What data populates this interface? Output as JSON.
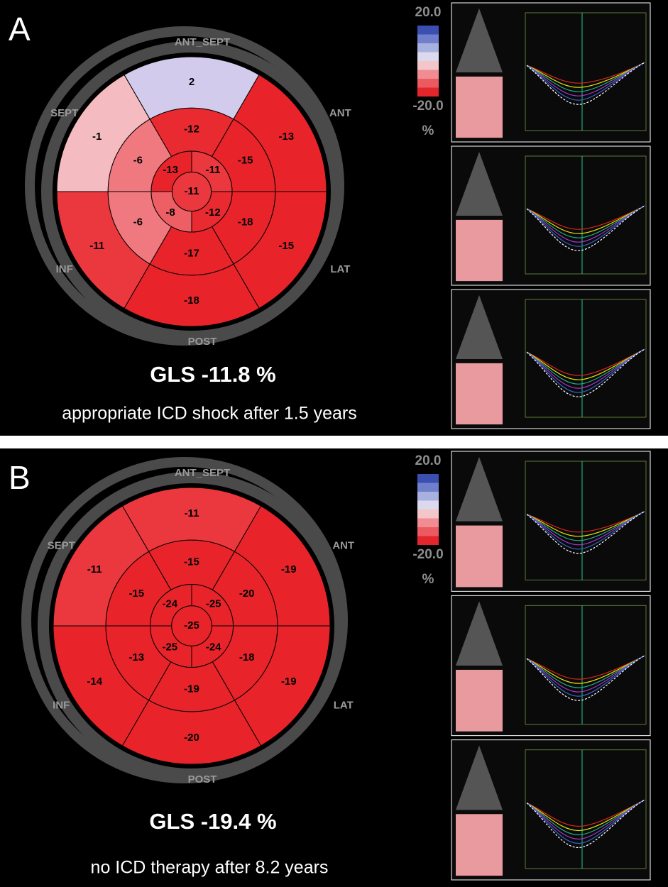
{
  "panels": [
    {
      "label": "A",
      "scale": {
        "max": "20.0",
        "min": "-20.0",
        "unit": "%"
      },
      "walls": [
        "ANT_SEPT",
        "ANT",
        "LAT",
        "POST",
        "INF",
        "SEPT"
      ],
      "basal": [
        2,
        -13,
        -15,
        -18,
        -11,
        -1
      ],
      "mid": [
        -12,
        -15,
        -18,
        -17,
        -6,
        -6
      ],
      "apical": [
        -11,
        -12,
        -8,
        -13
      ],
      "apex": -11,
      "gls": "GLS -11.8 %",
      "caption": "appropriate ICD shock after 1.5 years"
    },
    {
      "label": "B",
      "scale": {
        "max": "20.0",
        "min": "-20.0",
        "unit": "%"
      },
      "walls": [
        "ANT_SEPT",
        "ANT",
        "LAT",
        "POST",
        "INF",
        "SEPT"
      ],
      "basal": [
        -11,
        -19,
        -19,
        -20,
        -14,
        -11
      ],
      "mid": [
        -15,
        -20,
        -18,
        -19,
        -13,
        -15
      ],
      "apical": [
        -25,
        -24,
        -25,
        -24
      ],
      "apex": -25,
      "gls": "GLS -19.4 %",
      "caption": "no ICD therapy after 8.2 years"
    }
  ]
}
